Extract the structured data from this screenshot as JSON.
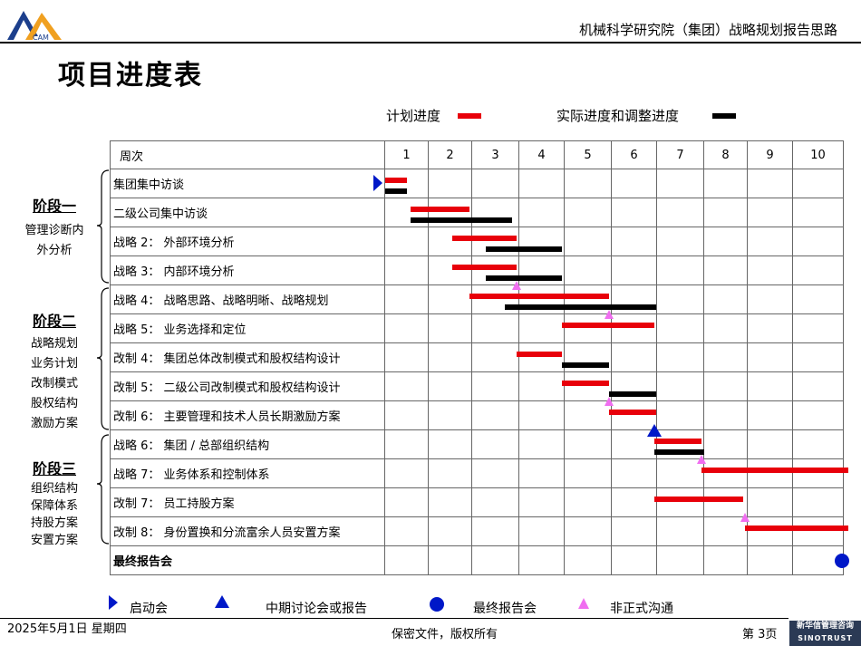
{
  "header": {
    "title": "机械科学研究院（集团）战略规划报告思路",
    "logo_text": "CAM"
  },
  "page_title": "项目进度表",
  "legend_top": {
    "plan_label": "计划进度",
    "actual_label": "实际进度和调整进度"
  },
  "table": {
    "week_header": "周次",
    "weeks": [
      "1",
      "2",
      "3",
      "4",
      "5",
      "6",
      "7",
      "8",
      "9",
      "10"
    ],
    "rows": [
      {
        "label": "集团集中访谈",
        "bold": false
      },
      {
        "label": "二级公司集中访谈",
        "bold": false
      },
      {
        "label": "战略 2： 外部环境分析",
        "bold": false
      },
      {
        "label": "战略 3： 内部环境分析",
        "bold": false
      },
      {
        "label": "战略 4： 战略思路、战略明晰、战略规划",
        "bold": false
      },
      {
        "label": "战略 5： 业务选择和定位",
        "bold": false
      },
      {
        "label": "改制 4： 集团总体改制模式和股权结构设计",
        "bold": false
      },
      {
        "label": "改制 5： 二级公司改制模式和股权结构设计",
        "bold": false
      },
      {
        "label": "改制 6： 主要管理和技术人员长期激励方案",
        "bold": false
      },
      {
        "label": "战略 6： 集团 / 总部组织结构",
        "bold": false
      },
      {
        "label": "战略 7： 业务体系和控制体系",
        "bold": false
      },
      {
        "label": "改制 7： 员工持股方案",
        "bold": false
      },
      {
        "label": "改制 8： 身份置换和分流富余人员安置方案",
        "bold": false
      },
      {
        "label": "最终报告会",
        "bold": true
      }
    ]
  },
  "schedule": [
    {
      "row": 0,
      "plan": [
        1.0,
        1.5
      ],
      "actual": [
        1.0,
        1.5
      ]
    },
    {
      "row": 1,
      "plan": [
        1.6,
        2.95
      ],
      "actual": [
        1.6,
        3.85
      ]
    },
    {
      "row": 2,
      "plan": [
        2.55,
        3.95
      ],
      "actual": [
        3.3,
        4.95
      ]
    },
    {
      "row": 3,
      "plan": [
        2.55,
        3.95
      ],
      "actual": [
        3.3,
        4.95
      ]
    },
    {
      "row": 4,
      "plan": [
        2.95,
        5.95
      ],
      "actual": [
        3.7,
        7.0
      ]
    },
    {
      "row": 5,
      "plan": [
        4.95,
        6.95
      ],
      "actual": null
    },
    {
      "row": 6,
      "plan": [
        3.95,
        4.95
      ],
      "actual": [
        4.95,
        5.95
      ]
    },
    {
      "row": 7,
      "plan": [
        4.95,
        5.95
      ],
      "actual": [
        5.95,
        7.0
      ]
    },
    {
      "row": 8,
      "plan": [
        5.95,
        7.0
      ],
      "actual": null
    },
    {
      "row": 9,
      "plan": [
        6.95,
        7.95
      ],
      "actual": [
        6.95,
        8.0
      ]
    },
    {
      "row": 10,
      "plan": [
        7.95,
        11.1
      ],
      "actual": null
    },
    {
      "row": 11,
      "plan": [
        6.95,
        8.9
      ],
      "actual": null
    },
    {
      "row": 12,
      "plan": [
        8.95,
        11.1
      ],
      "actual": null
    }
  ],
  "markers": [
    {
      "type": "start",
      "week": 0.95,
      "row": 0
    },
    {
      "type": "informal",
      "week": 3.95,
      "row": 3
    },
    {
      "type": "informal",
      "week": 5.95,
      "row": 4
    },
    {
      "type": "informal",
      "week": 5.95,
      "row": 7
    },
    {
      "type": "midterm",
      "week": 6.95,
      "row": 8
    },
    {
      "type": "informal",
      "week": 7.95,
      "row": 9
    },
    {
      "type": "informal",
      "week": 8.95,
      "row": 11
    },
    {
      "type": "final",
      "week": 11.1,
      "row": 13
    }
  ],
  "phases": [
    {
      "title": "阶段一",
      "desc": [
        "管理诊断内",
        "外分析"
      ]
    },
    {
      "title": "阶段二",
      "desc": [
        "战略规划",
        "业务计划",
        "改制模式",
        "股权结构",
        "激励方案"
      ]
    },
    {
      "title": "阶段三",
      "desc": [
        "组织结构",
        "保障体系",
        "持股方案",
        "安置方案"
      ]
    }
  ],
  "legend_bottom": {
    "start": "启动会",
    "midterm": "中期讨论会或报告",
    "final": "最终报告会",
    "informal": "非正式沟通"
  },
  "footer": {
    "date": "2025年5月1日  星期四",
    "confidential": "保密文件，版权所有",
    "page": "第 3页",
    "brand_cn": "新华信管理咨询",
    "brand_en": "SINOTRUST"
  },
  "colors": {
    "plan": "#e8000a",
    "actual": "#000000",
    "marker": "#0018c8",
    "informal": "#f06ef0"
  }
}
